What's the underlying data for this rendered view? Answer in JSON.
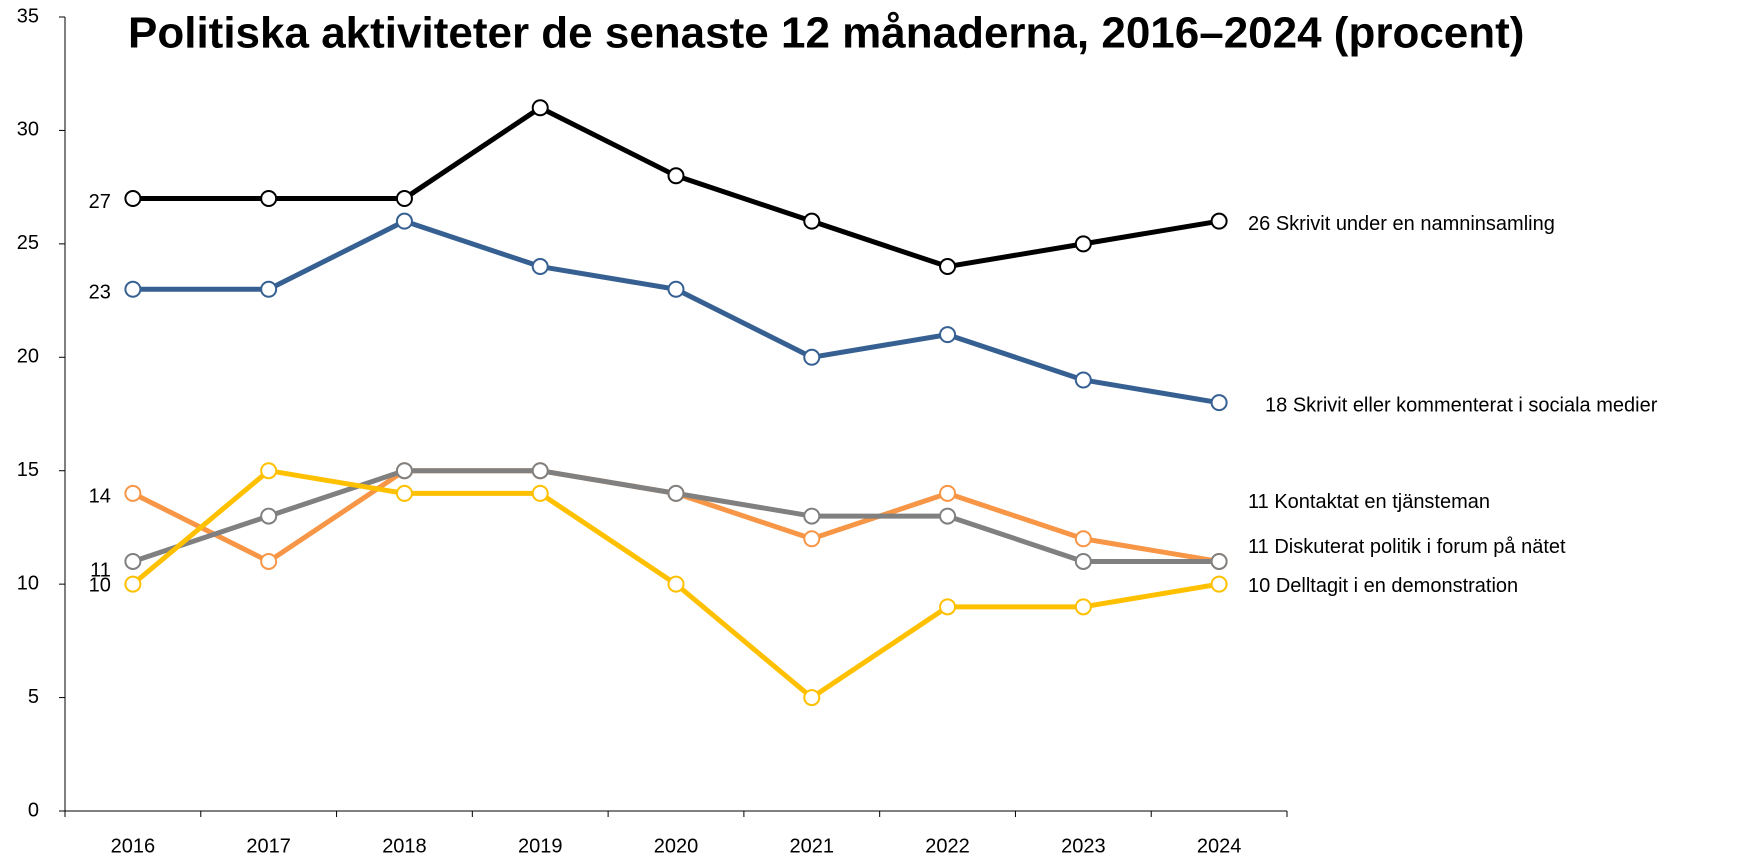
{
  "chart_data": {
    "type": "line",
    "title": "Politiska aktiviteter de senaste 12 månaderna, 2016–2024 (procent)",
    "categories": [
      "2016",
      "2017",
      "2018",
      "2019",
      "2020",
      "2021",
      "2022",
      "2023",
      "2024"
    ],
    "series": [
      {
        "name": "Skrivit under en namninsamling",
        "color": "#000000",
        "values": [
          27,
          27,
          27,
          31,
          28,
          26,
          24,
          25,
          26
        ]
      },
      {
        "name": "Skrivit eller kommenterat i sociala medier",
        "color": "#376092",
        "values": [
          23,
          23,
          26,
          24,
          23,
          20,
          21,
          19,
          18
        ]
      },
      {
        "name": "Kontaktat en tjänsteman",
        "color": "#f79646",
        "values": [
          14,
          11,
          15,
          15,
          14,
          12,
          14,
          12,
          11
        ]
      },
      {
        "name": "Diskuterat politik i forum på nätet",
        "color": "#808080",
        "values": [
          11,
          13,
          15,
          15,
          14,
          13,
          13,
          11,
          11
        ]
      },
      {
        "name": "Delltagit i en demonstration",
        "color": "#ffc000",
        "values": [
          10,
          15,
          14,
          14,
          10,
          5,
          9,
          9,
          10
        ]
      }
    ],
    "ylim": [
      0,
      35
    ],
    "yticks": [
      0,
      5,
      10,
      15,
      20,
      25,
      30,
      35
    ]
  }
}
